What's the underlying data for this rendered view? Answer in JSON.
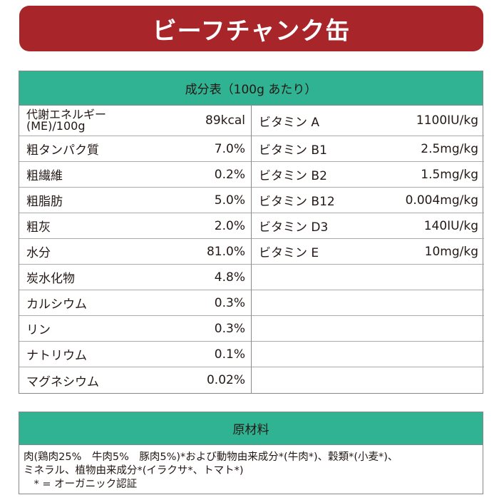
{
  "title": "ビーフチャンク缶",
  "nutrition": {
    "header": "成分表（100g あたり）",
    "left": [
      {
        "label": "代謝エネルギー\n(ME)/100g",
        "value": "89kcal"
      },
      {
        "label": "粗タンパク質",
        "value": "7.0%"
      },
      {
        "label": "粗繊維",
        "value": "0.2%"
      },
      {
        "label": "粗脂肪",
        "value": "5.0%"
      },
      {
        "label": "粗灰",
        "value": "2.0%"
      },
      {
        "label": "水分",
        "value": "81.0%"
      },
      {
        "label": "炭水化物",
        "value": "4.8%"
      },
      {
        "label": "カルシウム",
        "value": "0.3%"
      },
      {
        "label": "リン",
        "value": "0.3%"
      },
      {
        "label": "ナトリウム",
        "value": "0.1%"
      },
      {
        "label": "マグネシウム",
        "value": "0.02%"
      }
    ],
    "right": [
      {
        "label": "ビタミン A",
        "value": "1100IU/kg"
      },
      {
        "label": "ビタミン B1",
        "value": "2.5mg/kg"
      },
      {
        "label": "ビタミン B2",
        "value": "1.5mg/kg"
      },
      {
        "label": "ビタミン B12",
        "value": "0.004mg/kg"
      },
      {
        "label": "ビタミン D3",
        "value": "140IU/kg"
      },
      {
        "label": "ビタミン E",
        "value": "10mg/kg"
      },
      {
        "label": "",
        "value": ""
      },
      {
        "label": "",
        "value": ""
      },
      {
        "label": "",
        "value": ""
      },
      {
        "label": "",
        "value": ""
      },
      {
        "label": "",
        "value": ""
      }
    ]
  },
  "ingredients": {
    "header": "原材料",
    "lines": [
      "肉(鶏肉25%　牛肉5%　豚肉5%)*および動物由来成分*(牛肉*)、穀類*(小麦*)、",
      "ミネラル、植物由来成分*(イラクサ*、トマト*)",
      "　* = オーガニック認証"
    ]
  },
  "colors": {
    "title_bg": "#a8252a",
    "header_bg": "#30b392"
  }
}
